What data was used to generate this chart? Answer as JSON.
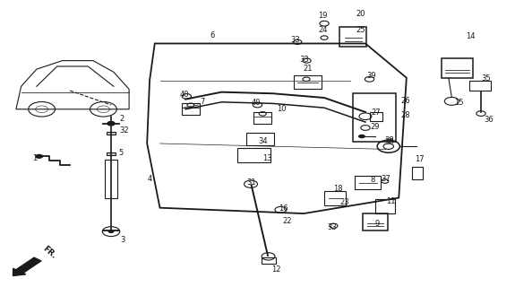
{
  "bg_color": "#ffffff",
  "line_color": "#1a1a1a",
  "fig_width": 5.75,
  "fig_height": 3.2,
  "dpi": 100
}
